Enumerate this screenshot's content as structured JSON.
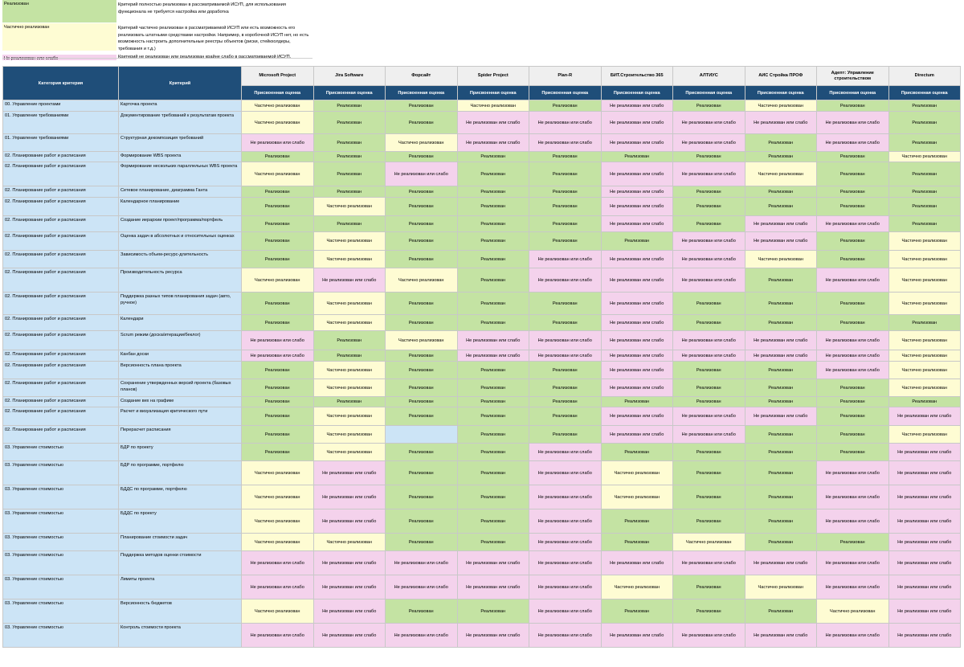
{
  "legend": [
    {
      "key": "Реализован",
      "desc": "Критерий полностью реализован в рассматриваемой ИСУП, для использования функционала не требуется настройка или доработка",
      "color": "#c4e3a3"
    },
    {
      "key": "Частично реализован",
      "desc": "Критерий частично реализован в рассматриваемой ИСУП или есть возможность его реализовать штатными средствами настройки. Например, в коробочной ИСУП нет, но есть возможность настроить дополнительные реестры объектов (риски, стейкхолдеры, требования и т.д.)",
      "color": "#fefcd3"
    },
    {
      "key": "Не реализован или слабо",
      "desc": "Критерий не реализован или реализован крайне слабо в рассматриваемой ИСУП.",
      "color": "#f4d2ec"
    }
  ],
  "table": {
    "header_category": "Категория критерия",
    "header_criterion": "Критерий",
    "products": [
      "Microsoft Project",
      "Jira Software",
      "Форсайт",
      "Spider Project",
      "Plan-R",
      "БИТ.Строительство 365",
      "АЛТИУС",
      "АИС Стройка ПРОФ",
      "Адепт: Управление строительством",
      "Directum"
    ],
    "subheader": "Присвоенная оценка",
    "rows": [
      {
        "cat": "00. Управление проектами",
        "crit": "Карточка проекта",
        "v": [
          "Частично реализован",
          "Реализован",
          "Реализован",
          "Частично реализован",
          "Реализован",
          "Не реализован или слабо",
          "Реализован",
          "Частично реализован",
          "Реализован",
          "Реализован"
        ]
      },
      {
        "cat": "01. Управление требованиями",
        "crit": "Документирование требований к результатам проекта",
        "v": [
          "Частично реализован",
          "Реализован",
          "Реализован",
          "Не реализован или слабо",
          "Не реализован или слабо",
          "Не реализован или слабо",
          "Не реализован или слабо",
          "Не реализован или слабо",
          "Не реализован или слабо",
          "Реализован"
        ]
      },
      {
        "cat": "01. Управление требованиями",
        "crit": "Структурная декомпозиция требований",
        "v": [
          "Не реализован или слабо",
          "Реализован",
          "Частично реализован",
          "Не реализован или слабо",
          "Не реализован или слабо",
          "Не реализован или слабо",
          "Не реализован или слабо",
          "Реализован",
          "Не реализован или слабо",
          "Реализован"
        ]
      },
      {
        "cat": "02. Планирование работ и расписания",
        "crit": "Формирование WBS проекта",
        "v": [
          "Реализован",
          "Реализован",
          "Реализован",
          "Реализован",
          "Реализован",
          "Реализован",
          "Реализован",
          "Реализован",
          "Реализован",
          "Частично реализован"
        ]
      },
      {
        "cat": "02. Планирование работ и расписания",
        "crit": "Формирование нескольких параллельных WBS проекта",
        "v": [
          "Частично реализован",
          "Реализован",
          "Не реализован или слабо",
          "Реализован",
          "Реализован",
          "Не реализован или слабо",
          "Не реализован или слабо",
          "Частично реализован",
          "Реализован",
          "Реализован"
        ]
      },
      {
        "cat": "02. Планирование работ и расписания",
        "crit": "Сетевое планирование, диаграмма Ганта",
        "v": [
          "Реализован",
          "Реализован",
          "Реализован",
          "Реализован",
          "Реализован",
          "Не реализован или слабо",
          "Реализован",
          "Реализован",
          "Реализован",
          "Реализован"
        ]
      },
      {
        "cat": "02. Планирование работ и расписания",
        "crit": "Календарное планирование",
        "v": [
          "Реализован",
          "Частично реализован",
          "Реализован",
          "Реализован",
          "Реализован",
          "Не реализован или слабо",
          "Реализован",
          "Реализован",
          "Реализован",
          "Реализован"
        ]
      },
      {
        "cat": "02. Планирование работ и расписания",
        "crit": "Создание иерархии проект/программа/портфель",
        "v": [
          "Реализован",
          "Реализован",
          "Реализован",
          "Реализован",
          "Реализован",
          "Не реализован или слабо",
          "Реализован",
          "Не реализован или слабо",
          "Не реализован или слабо",
          "Реализован"
        ]
      },
      {
        "cat": "02. Планирование работ и расписания",
        "crit": "Оценка задач в абсолютных и относительных оценках",
        "v": [
          "Реализован",
          "Частично реализован",
          "Реализован",
          "Реализован",
          "Реализован",
          "Реализован",
          "Не реализован или слабо",
          "Не реализован или слабо",
          "Реализован",
          "Частично реализован"
        ]
      },
      {
        "cat": "02. Планирование работ и расписания",
        "crit": "Зависимость объем-ресурс-длительность",
        "v": [
          "Реализован",
          "Частично реализован",
          "Реализован",
          "Реализован",
          "Не реализован или слабо",
          "Не реализован или слабо",
          "Не реализован или слабо",
          "Частично реализован",
          "Реализован",
          "Частично реализован"
        ]
      },
      {
        "cat": "02. Планирование работ и расписания",
        "crit": "Производительность ресурса",
        "v": [
          "Частично реализован",
          "Не реализован или слабо",
          "Частично реализован",
          "Реализован",
          "Не реализован или слабо",
          "Не реализован или слабо",
          "Не реализован или слабо",
          "Реализован",
          "Не реализован или слабо",
          "Частично реализован"
        ]
      },
      {
        "cat": "02. Планирование работ и расписания",
        "crit": "Поддержка разных типов планирования задач (авто, ручное)",
        "v": [
          "Реализован",
          "Частично реализован",
          "Реализован",
          "Реализован",
          "Реализован",
          "Не реализован или слабо",
          "Реализован",
          "Реализован",
          "Реализован",
          "Частично реализован"
        ]
      },
      {
        "cat": "02. Планирование работ и расписания",
        "crit": "Календари",
        "v": [
          "Реализован",
          "Частично реализован",
          "Реализован",
          "Реализован",
          "Реализован",
          "Не реализован или слабо",
          "Реализован",
          "Реализован",
          "Реализован",
          "Реализован"
        ]
      },
      {
        "cat": "02. Планирование работ и расписания",
        "crit": "Scrum режим (доска/итерации/беклог)",
        "v": [
          "Не реализован или слабо",
          "Реализован",
          "Частично реализован",
          "Не реализован или слабо",
          "Не реализован или слабо",
          "Не реализован или слабо",
          "Не реализован или слабо",
          "Не реализован или слабо",
          "Не реализован или слабо",
          "Частично реализован"
        ]
      },
      {
        "cat": "02. Планирование работ и расписания",
        "crit": "Канбан доски",
        "v": [
          "Не реализован или слабо",
          "Реализован",
          "Реализован",
          "Не реализован или слабо",
          "Не реализован или слабо",
          "Не реализован или слабо",
          "Не реализован или слабо",
          "Не реализован или слабо",
          "Не реализован или слабо",
          "Частично реализован"
        ]
      },
      {
        "cat": "02. Планирование работ и расписания",
        "crit": "Версионность плана проекта",
        "v": [
          "Реализован",
          "Частично реализован",
          "Реализован",
          "Реализован",
          "Реализован",
          "Не реализован или слабо",
          "Реализован",
          "Реализован",
          "Не реализован или слабо",
          "Частично реализован"
        ]
      },
      {
        "cat": "02. Планирование работ и расписания",
        "crit": "Сохранение утвержденных версий проекта (базовых планов)",
        "v": [
          "Реализован",
          "Частично реализован",
          "Реализован",
          "Реализован",
          "Реализован",
          "Не реализован или слабо",
          "Реализован",
          "Реализован",
          "Реализован",
          "Частично реализован"
        ]
      },
      {
        "cat": "02. Планирование работ и расписания",
        "crit": "Создание вех на графике",
        "v": [
          "Реализован",
          "Реализован",
          "Реализован",
          "Реализован",
          "Реализован",
          "Реализован",
          "Реализован",
          "Реализован",
          "Реализован",
          "Реализован"
        ]
      },
      {
        "cat": "02. Планирование работ и расписания",
        "crit": "Расчет и визуализация критического пути",
        "v": [
          "Реализован",
          "Частично реализован",
          "Реализован",
          "Реализован",
          "Реализован",
          "Не реализован или слабо",
          "Не реализован или слабо",
          "Не реализован или слабо",
          "Реализован",
          "Не реализован или слабо"
        ]
      },
      {
        "cat": "02. Планирование работ и расписания",
        "crit": "Перерасчет расписания",
        "v": [
          "Реализован",
          "Частично реализован",
          "",
          "Реализован",
          "Реализован",
          "Не реализован или слабо",
          "Не реализован или слабо",
          "Реализован",
          "Реализован",
          "Частично реализован"
        ]
      },
      {
        "cat": "03. Управление стоимостью",
        "crit": "БДР по проекту",
        "v": [
          "Реализован",
          "Частично реализован",
          "Реализован",
          "Реализован",
          "Не реализован или слабо",
          "Реализован",
          "Реализован",
          "Реализован",
          "Реализован",
          "Не реализован или слабо"
        ]
      },
      {
        "cat": "03. Управление стоимостью",
        "crit": "БДР по программе, портфелю",
        "v": [
          "Частично реализован",
          "Не реализован или слабо",
          "Реализован",
          "Реализован",
          "Не реализован или слабо",
          "Частично реализован",
          "Реализован",
          "Реализован",
          "Не реализован или слабо",
          "Не реализован или слабо"
        ]
      },
      {
        "cat": "03. Управление стоимостью",
        "crit": "БДДС по программе, портфелю",
        "v": [
          "Частично реализован",
          "Не реализован или слабо",
          "Реализован",
          "Реализован",
          "Не реализован или слабо",
          "Частично реализован",
          "Реализован",
          "Реализован",
          "Не реализован или слабо",
          "Не реализован или слабо"
        ]
      },
      {
        "cat": "03. Управление стоимостью",
        "crit": "БДДС по проекту",
        "v": [
          "Частично реализован",
          "Не реализован или слабо",
          "Реализован",
          "Реализован",
          "Не реализован или слабо",
          "Реализован",
          "Реализован",
          "Реализован",
          "Не реализован или слабо",
          "Не реализован или слабо"
        ]
      },
      {
        "cat": "03. Управление стоимостью",
        "crit": "Планирование стоимости задач",
        "v": [
          "Частично реализован",
          "Частично реализован",
          "Реализован",
          "Реализован",
          "Не реализован или слабо",
          "Реализован",
          "Частично реализован",
          "Реализован",
          "Реализован",
          "Не реализован или слабо"
        ]
      },
      {
        "cat": "03. Управление стоимостью",
        "crit": "Поддержка методов оценки стоимости",
        "v": [
          "Не реализован или слабо",
          "Не реализован или слабо",
          "Не реализован или слабо",
          "Не реализован или слабо",
          "Не реализован или слабо",
          "Не реализован или слабо",
          "Не реализован или слабо",
          "Не реализован или слабо",
          "Не реализован или слабо",
          "Не реализован или слабо"
        ]
      },
      {
        "cat": "03. Управление стоимостью",
        "crit": "Лимиты проекта",
        "v": [
          "Не реализован или слабо",
          "Не реализован или слабо",
          "Не реализован или слабо",
          "Не реализован или слабо",
          "Не реализован или слабо",
          "Частично реализован",
          "Реализован",
          "Частично реализован",
          "Не реализован или слабо",
          "Не реализован или слабо"
        ]
      },
      {
        "cat": "03. Управление стоимостью",
        "crit": "Версионность бюджетов",
        "v": [
          "Частично реализован",
          "Не реализован или слабо",
          "Реализован",
          "Реализован",
          "Не реализован или слабо",
          "Реализован",
          "Реализован",
          "Реализован",
          "Частично реализован",
          "Не реализован или слабо"
        ]
      },
      {
        "cat": "03. Управление стоимостью",
        "crit": "Контроль стоимости проекта",
        "v": [
          "Не реализован или слабо",
          "Не реализован или слабо",
          "Не реализован или слабо",
          "Не реализован или слабо",
          "Не реализован или слабо",
          "Не реализован или слабо",
          "Не реализован или слабо",
          "Не реализован или слабо",
          "Не реализован или слабо",
          "Не реализован или слабо"
        ]
      }
    ]
  }
}
